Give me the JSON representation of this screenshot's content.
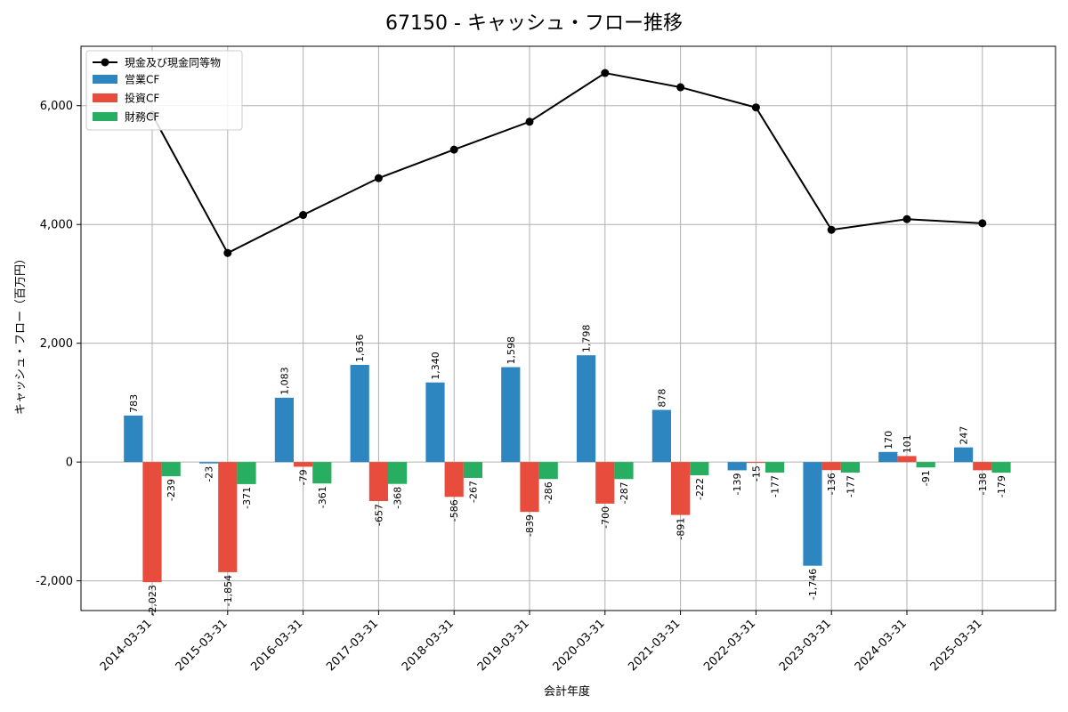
{
  "chart_data": {
    "type": "bar",
    "title": "67150 - キャッシュ・フロー推移",
    "xlabel": "会計年度",
    "ylabel": "キャッシュ・フロー（百万円）",
    "ylim": [
      -2500,
      7000
    ],
    "yticks": [
      -2000,
      0,
      2000,
      4000,
      6000
    ],
    "ytick_labels": [
      "-2,000",
      "0",
      "2,000",
      "4,000",
      "6,000"
    ],
    "grid": true,
    "legend_position": "top-left",
    "categories": [
      "2014-03-31",
      "2015-03-31",
      "2016-03-31",
      "2017-03-31",
      "2018-03-31",
      "2019-03-31",
      "2020-03-31",
      "2021-03-31",
      "2022-03-31",
      "2023-03-31",
      "2024-03-31",
      "2025-03-31"
    ],
    "bar_series": [
      {
        "name": "営業CF",
        "color": "#2e86c1",
        "values": [
          783,
          -23,
          1083,
          1636,
          1340,
          1598,
          1798,
          878,
          -139,
          -1746,
          170,
          247
        ],
        "labels": [
          "783",
          "-23",
          "1,083",
          "1,636",
          "1,340",
          "1,598",
          "1,798",
          "878",
          "-139",
          "-1,746",
          "170",
          "247"
        ]
      },
      {
        "name": "投資CF",
        "color": "#e74c3c",
        "values": [
          -2023,
          -1854,
          -79,
          -657,
          -586,
          -839,
          -700,
          -891,
          -15,
          -136,
          101,
          -138
        ],
        "labels": [
          "-2,023",
          "-1,854",
          "-79",
          "-657",
          "-586",
          "-839",
          "-700",
          "-891",
          "-15",
          "-136",
          "101",
          "-138"
        ]
      },
      {
        "name": "財務CF",
        "color": "#27ae60",
        "values": [
          -239,
          -371,
          -361,
          -368,
          -267,
          -286,
          -287,
          -222,
          -177,
          -177,
          -91,
          -179
        ],
        "labels": [
          "-239",
          "-371",
          "-361",
          "-368",
          "-267",
          "-286",
          "-287",
          "-222",
          "-177",
          "-177",
          "-91",
          "-179"
        ]
      }
    ],
    "line_series": {
      "name": "現金及び現金同等物",
      "color": "#000000",
      "values": [
        5850,
        3520,
        4160,
        4780,
        5260,
        5730,
        6550,
        6310,
        5970,
        3910,
        4090,
        4020
      ]
    }
  }
}
